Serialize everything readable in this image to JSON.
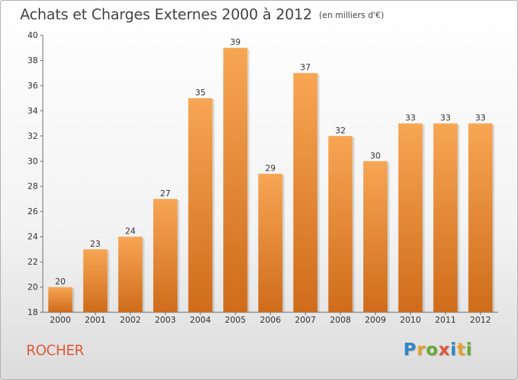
{
  "header": {
    "title": "Achats et Charges Externes 2000 à 2012",
    "unit": "(en milliers d'€)"
  },
  "commune": "ROCHER",
  "logo": {
    "text": "Proxiti"
  },
  "colors": {
    "bar_top": "#f7a654",
    "bar_bottom": "#cf6c1b",
    "axis": "#666666",
    "commune": "#e0573a"
  },
  "chart_data": {
    "type": "bar",
    "title": "Achats et Charges Externes 2000 à 2012",
    "subtitle": "(en milliers d'€)",
    "categories": [
      "2000",
      "2001",
      "2002",
      "2003",
      "2004",
      "2005",
      "2006",
      "2007",
      "2008",
      "2009",
      "2010",
      "2011",
      "2012"
    ],
    "values": [
      20,
      23,
      24,
      27,
      35,
      39,
      29,
      37,
      32,
      30,
      33,
      33,
      33
    ],
    "ylim": [
      18,
      40
    ],
    "yticks": [
      18,
      20,
      22,
      24,
      26,
      28,
      30,
      32,
      34,
      36,
      38,
      40
    ],
    "grid": false,
    "data_labels": true
  }
}
